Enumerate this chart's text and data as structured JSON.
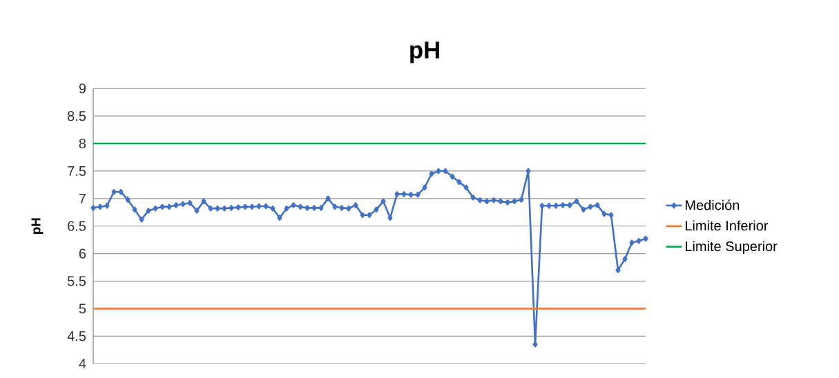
{
  "chart_data": {
    "type": "line",
    "title": "pH",
    "ylabel": "pH",
    "categories": [
      null,
      null,
      null,
      null,
      null,
      null,
      null,
      null,
      null,
      null,
      null,
      null,
      null,
      null,
      null,
      null,
      null,
      null,
      null,
      null,
      null,
      null,
      null,
      null,
      null,
      null,
      null,
      null,
      null,
      null,
      null,
      null,
      null,
      null,
      null,
      null,
      null,
      null,
      null,
      null,
      null,
      null,
      null,
      null,
      null,
      null,
      null,
      null,
      null,
      null,
      null,
      null,
      null,
      null,
      null,
      null,
      null,
      null,
      null,
      null,
      null,
      null,
      null,
      null,
      null,
      null,
      null,
      null,
      null,
      null,
      null,
      null,
      null,
      null,
      null,
      null,
      null,
      null,
      null,
      null,
      null
    ],
    "series": [
      {
        "name": "Medición",
        "color": "#4472c4",
        "marker": "diamond",
        "values": [
          6.83,
          6.85,
          6.87,
          7.12,
          7.12,
          6.98,
          6.8,
          6.62,
          6.78,
          6.82,
          6.85,
          6.85,
          6.88,
          6.9,
          6.92,
          6.78,
          6.95,
          6.82,
          6.82,
          6.82,
          6.83,
          6.84,
          6.85,
          6.85,
          6.86,
          6.86,
          6.82,
          6.65,
          6.82,
          6.88,
          6.85,
          6.83,
          6.83,
          6.83,
          7.0,
          6.85,
          6.83,
          6.82,
          6.88,
          6.7,
          6.7,
          6.8,
          6.95,
          6.65,
          7.08,
          7.08,
          7.07,
          7.07,
          7.2,
          7.45,
          7.5,
          7.5,
          7.4,
          7.3,
          7.2,
          7.02,
          6.97,
          6.95,
          6.97,
          6.95,
          6.93,
          6.95,
          6.98,
          7.5,
          4.35,
          6.87,
          6.87,
          6.87,
          6.88,
          6.88,
          6.95,
          6.8,
          6.85,
          6.88,
          6.72,
          6.7,
          5.7,
          5.9,
          6.2,
          6.23,
          6.27
        ]
      },
      {
        "name": "Limite Inferior",
        "color": "#ed7d31",
        "values": [
          5,
          5,
          5,
          5,
          5,
          5,
          5,
          5,
          5,
          5,
          5,
          5,
          5,
          5,
          5,
          5,
          5,
          5,
          5,
          5,
          5,
          5,
          5,
          5,
          5,
          5,
          5,
          5,
          5,
          5,
          5,
          5,
          5,
          5,
          5,
          5,
          5,
          5,
          5,
          5,
          5,
          5,
          5,
          5,
          5,
          5,
          5,
          5,
          5,
          5,
          5,
          5,
          5,
          5,
          5,
          5,
          5,
          5,
          5,
          5,
          5,
          5,
          5,
          5,
          5,
          5,
          5,
          5,
          5,
          5,
          5,
          5,
          5,
          5,
          5,
          5,
          5,
          5,
          5,
          5,
          5
        ]
      },
      {
        "name": "Limite Superior",
        "color": "#00b050",
        "values": [
          8,
          8,
          8,
          8,
          8,
          8,
          8,
          8,
          8,
          8,
          8,
          8,
          8,
          8,
          8,
          8,
          8,
          8,
          8,
          8,
          8,
          8,
          8,
          8,
          8,
          8,
          8,
          8,
          8,
          8,
          8,
          8,
          8,
          8,
          8,
          8,
          8,
          8,
          8,
          8,
          8,
          8,
          8,
          8,
          8,
          8,
          8,
          8,
          8,
          8,
          8,
          8,
          8,
          8,
          8,
          8,
          8,
          8,
          8,
          8,
          8,
          8,
          8,
          8,
          8,
          8,
          8,
          8,
          8,
          8,
          8,
          8,
          8,
          8,
          8,
          8,
          8,
          8,
          8,
          8,
          8
        ]
      }
    ],
    "ylim": [
      4,
      9
    ],
    "yticks": [
      4,
      4.5,
      5,
      5.5,
      6,
      6.5,
      7,
      7.5,
      8,
      8.5,
      9
    ],
    "grid": "y",
    "legend": "right",
    "tick_labels": "y"
  }
}
